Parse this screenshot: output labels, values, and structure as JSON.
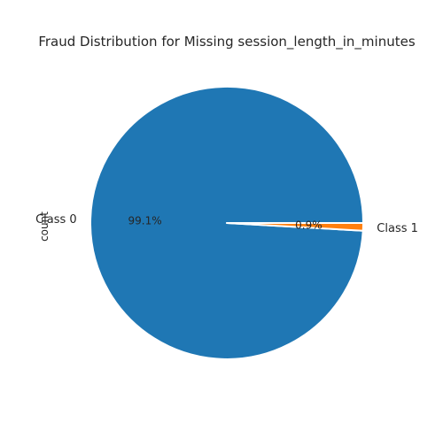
{
  "chart_data": {
    "type": "pie",
    "title": "Fraud Distribution for Missing session_length_in_minutes",
    "ylabel": "count",
    "slices": [
      {
        "label": "Class 0",
        "value": 99.1,
        "pct_label": "99.1%",
        "color": "#1f77b4"
      },
      {
        "label": "Class 1",
        "value": 0.9,
        "pct_label": "0.9%",
        "color": "#ff7f0e"
      }
    ],
    "start_angle_deg": 0,
    "direction": "counterclockwise"
  }
}
